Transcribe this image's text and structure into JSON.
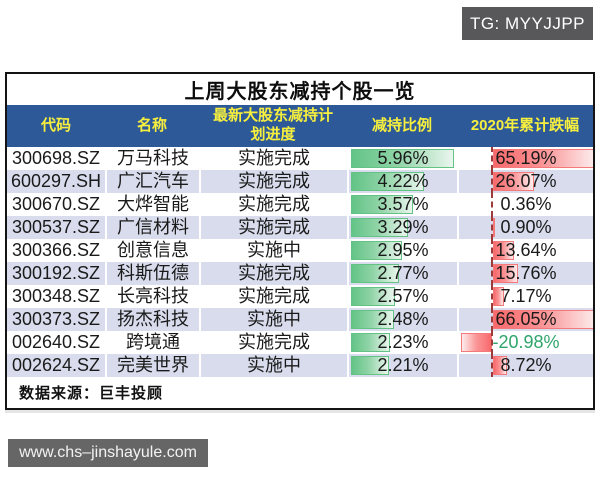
{
  "watermarks": {
    "top": "TG: MYYJJPP",
    "bottom": "www.chs–jinshayule.com"
  },
  "table": {
    "title": "上周大股东减持个股一览",
    "columns": [
      "代码",
      "名称",
      "最新大股东减持计划进度",
      "减持比例",
      "2020年累计跌幅"
    ],
    "rows": [
      {
        "code": "300698.SZ",
        "name": "万马科技",
        "progress": "实施完成",
        "reduction": "5.96%",
        "reduction_value": 5.96,
        "decline": "65.19%",
        "decline_value": 65.19
      },
      {
        "code": "600297.SH",
        "name": "广汇汽车",
        "progress": "实施完成",
        "reduction": "4.22%",
        "reduction_value": 4.22,
        "decline": "26.07%",
        "decline_value": 26.07
      },
      {
        "code": "300670.SZ",
        "name": "大烨智能",
        "progress": "实施完成",
        "reduction": "3.57%",
        "reduction_value": 3.57,
        "decline": "0.36%",
        "decline_value": 0.36
      },
      {
        "code": "300537.SZ",
        "name": "广信材料",
        "progress": "实施完成",
        "reduction": "3.29%",
        "reduction_value": 3.29,
        "decline": "0.90%",
        "decline_value": 0.9
      },
      {
        "code": "300366.SZ",
        "name": "创意信息",
        "progress": "实施中",
        "reduction": "2.95%",
        "reduction_value": 2.95,
        "decline": "13.64%",
        "decline_value": 13.64
      },
      {
        "code": "300192.SZ",
        "name": "科斯伍德",
        "progress": "实施完成",
        "reduction": "2.77%",
        "reduction_value": 2.77,
        "decline": "15.76%",
        "decline_value": 15.76
      },
      {
        "code": "300348.SZ",
        "name": "长亮科技",
        "progress": "实施完成",
        "reduction": "2.57%",
        "reduction_value": 2.57,
        "decline": "7.17%",
        "decline_value": 7.17
      },
      {
        "code": "300373.SZ",
        "name": "扬杰科技",
        "progress": "实施中",
        "reduction": "2.48%",
        "reduction_value": 2.48,
        "decline": "66.05%",
        "decline_value": 66.05
      },
      {
        "code": "002640.SZ",
        "name": "跨境通",
        "progress": "实施完成",
        "reduction": "2.23%",
        "reduction_value": 2.23,
        "decline": "-20.98%",
        "decline_value": -20.98
      },
      {
        "code": "002624.SZ",
        "name": "完美世界",
        "progress": "实施中",
        "reduction": "2.21%",
        "reduction_value": 2.21,
        "decline": "8.72%",
        "decline_value": 8.72
      }
    ],
    "source_note": "数据来源：巨丰投顾"
  },
  "colors": {
    "header_bg": "#2e5998",
    "header_text": "#f7ef3d",
    "row_alt_bg": "#d8dcec",
    "green_bar": "#63c384",
    "red_bar": "#f8696b",
    "negative_value_text": "#2fa56b",
    "zero_axis": "#9e3a3a",
    "badge_bg": "#58585a"
  },
  "chart_data": {
    "type": "table",
    "title": "上周大股东减持个股一览",
    "columns": [
      "代码",
      "名称",
      "最新大股东减持计划进度",
      "减持比例",
      "2020年累计跌幅"
    ],
    "rows": [
      [
        "300698.SZ",
        "万马科技",
        "实施完成",
        "5.96%",
        "65.19%"
      ],
      [
        "600297.SH",
        "广汇汽车",
        "实施完成",
        "4.22%",
        "26.07%"
      ],
      [
        "300670.SZ",
        "大烨智能",
        "实施完成",
        "3.57%",
        "0.36%"
      ],
      [
        "300537.SZ",
        "广信材料",
        "实施完成",
        "3.29%",
        "0.90%"
      ],
      [
        "300366.SZ",
        "创意信息",
        "实施中",
        "2.95%",
        "13.64%"
      ],
      [
        "300192.SZ",
        "科斯伍德",
        "实施完成",
        "2.77%",
        "15.76%"
      ],
      [
        "300348.SZ",
        "长亮科技",
        "实施完成",
        "2.57%",
        "7.17%"
      ],
      [
        "300373.SZ",
        "扬杰科技",
        "实施中",
        "2.48%",
        "66.05%"
      ],
      [
        "002640.SZ",
        "跨境通",
        "实施完成",
        "2.23%",
        "-20.98%"
      ],
      [
        "002624.SZ",
        "完美世界",
        "实施中",
        "2.21%",
        "8.72%"
      ]
    ],
    "databars": [
      {
        "column": "减持比例",
        "style": "green-gradient",
        "values": [
          5.96,
          4.22,
          3.57,
          3.29,
          2.95,
          2.77,
          2.57,
          2.48,
          2.23,
          2.21
        ],
        "scale_max": 5.96
      },
      {
        "column": "2020年累计跌幅",
        "style": "red-gradient",
        "zero_axis": true,
        "values": [
          65.19,
          26.07,
          0.36,
          0.9,
          13.64,
          15.76,
          7.17,
          66.05,
          -20.98,
          8.72
        ],
        "scale_max": 66.05
      }
    ],
    "source": "数据来源：巨丰投顾"
  }
}
